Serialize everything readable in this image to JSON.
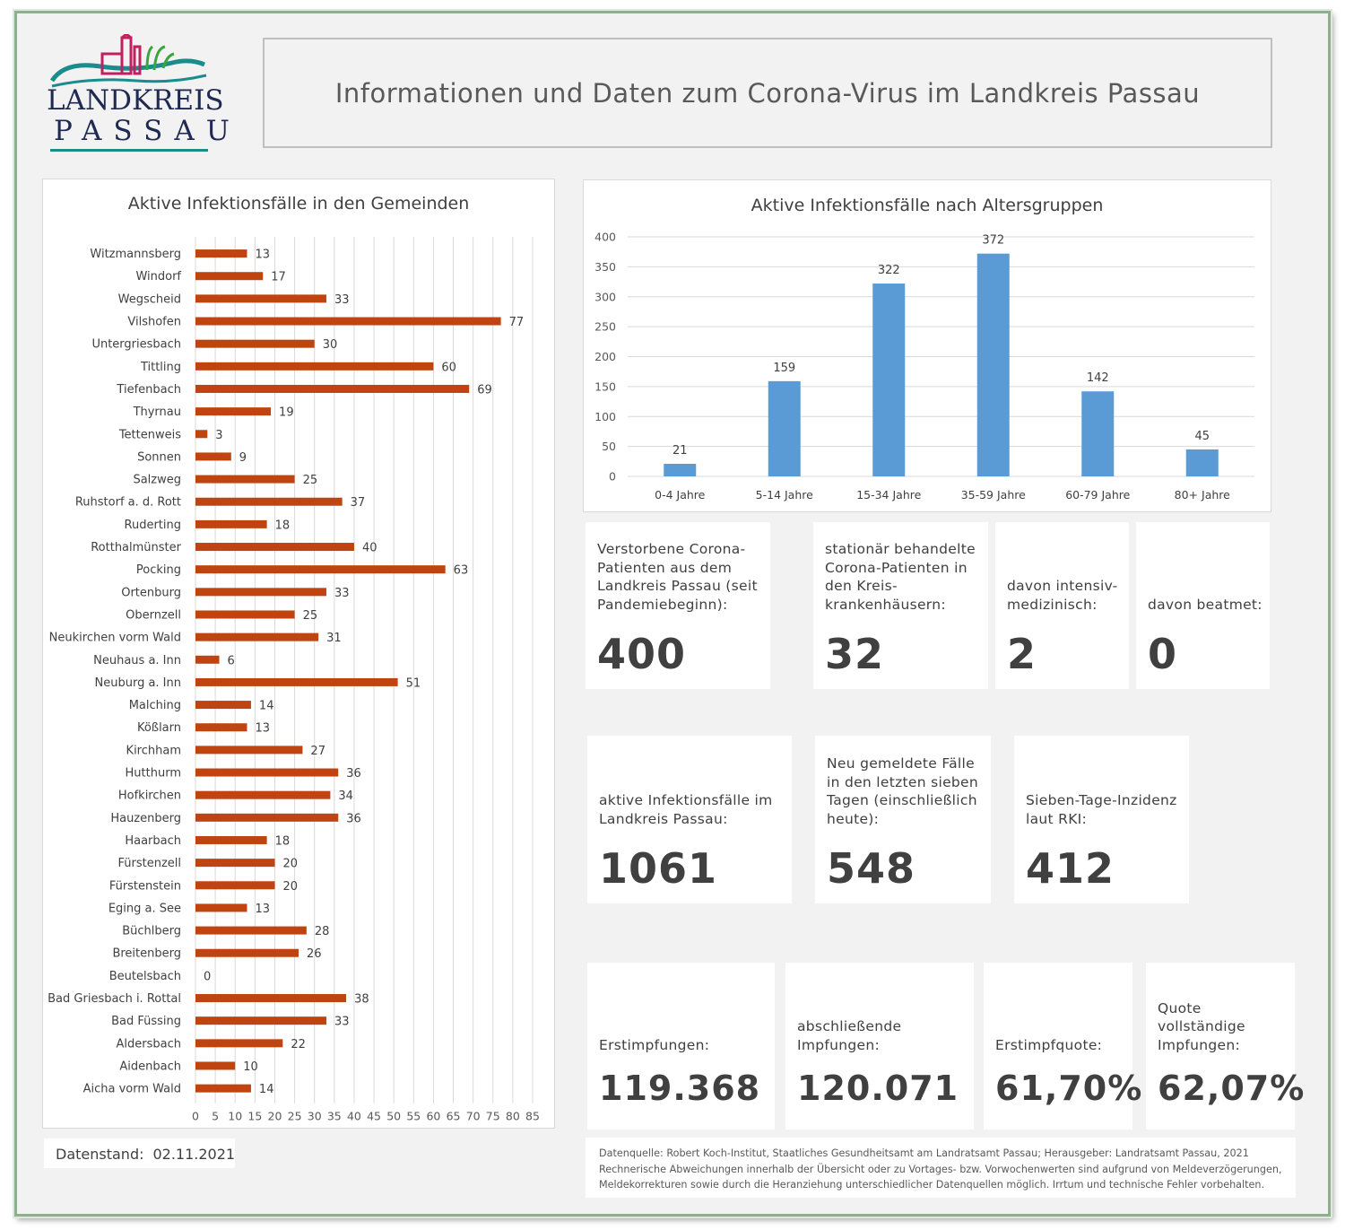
{
  "logo": {
    "line1": "LANDKREIS",
    "line2": "PASSAU"
  },
  "header": {
    "title": "Informationen und Daten zum Corona-Virus im Landkreis Passau"
  },
  "colors": {
    "bar_municipal": "#c0440f",
    "bar_age": "#5b9bd5",
    "frame": "#8fb08f"
  },
  "chart_data": [
    {
      "type": "bar",
      "orientation": "horizontal",
      "title": "Aktive Infektionsfälle in den Gemeinden",
      "categories": [
        "Witzmannsberg",
        "Windorf",
        "Wegscheid",
        "Vilshofen",
        "Untergriesbach",
        "Tittling",
        "Tiefenbach",
        "Thyrnau",
        "Tettenweis",
        "Sonnen",
        "Salzweg",
        "Ruhstorf a. d. Rott",
        "Ruderting",
        "Rotthalmünster",
        "Pocking",
        "Ortenburg",
        "Obernzell",
        "Neukirchen vorm Wald",
        "Neuhaus a. Inn",
        "Neuburg a. Inn",
        "Malching",
        "Kößlarn",
        "Kirchham",
        "Hutthurm",
        "Hofkirchen",
        "Hauzenberg",
        "Haarbach",
        "Fürstenzell",
        "Fürstenstein",
        "Eging a. See",
        "Büchlberg",
        "Breitenberg",
        "Beutelsbach",
        "Bad Griesbach i. Rottal",
        "Bad Füssing",
        "Aldersbach",
        "Aidenbach",
        "Aicha vorm Wald"
      ],
      "values": [
        13,
        17,
        33,
        77,
        30,
        60,
        69,
        19,
        3,
        9,
        25,
        37,
        18,
        40,
        63,
        33,
        25,
        31,
        6,
        51,
        14,
        13,
        27,
        36,
        34,
        36,
        18,
        20,
        20,
        13,
        28,
        26,
        0,
        38,
        33,
        22,
        10,
        14
      ],
      "xlim": [
        0,
        85
      ],
      "xticks": [
        "0",
        "5",
        "10",
        "15",
        "20",
        "25",
        "30",
        "35",
        "40",
        "45",
        "50",
        "55",
        "60",
        "65",
        "70",
        "75",
        "80",
        "85"
      ],
      "grid": true,
      "data_labels": true
    },
    {
      "type": "bar",
      "title": "Aktive Infektionsfälle nach Altersgruppen",
      "categories": [
        "0-4 Jahre",
        "5-14 Jahre",
        "15-34 Jahre",
        "35-59 Jahre",
        "60-79 Jahre",
        "80+ Jahre"
      ],
      "values": [
        21,
        159,
        322,
        372,
        142,
        45
      ],
      "ylim": [
        0,
        400
      ],
      "yticks": [
        "0",
        "50",
        "100",
        "150",
        "200",
        "250",
        "300",
        "350",
        "400"
      ],
      "grid": true,
      "data_labels": true
    }
  ],
  "tiles": {
    "deaths": {
      "label": "Verstorbene Corona-Patienten aus dem Landkreis Passau (seit Pandemiebeginn):",
      "value": "400"
    },
    "hospital": {
      "label": "stationär behandelte Corona-Patienten in den Kreis-krankenhäusern:",
      "value": "32"
    },
    "icu": {
      "label": "davon intensiv-medizinisch:",
      "value": "2"
    },
    "ventilated": {
      "label": "davon beatmet:",
      "value": "0"
    },
    "active": {
      "label": "aktive Infektionsfälle im Landkreis Passau:",
      "value": "1061"
    },
    "new7": {
      "label": "Neu gemeldete Fälle in den letzten sieben Tagen (einschließlich heute):",
      "value": "548"
    },
    "incidence": {
      "label": "Sieben-Tage-Inzidenz laut RKI:",
      "value": "412"
    },
    "first_vacc": {
      "label": "Erstimpfungen:",
      "value": "119.368"
    },
    "full_vacc": {
      "label": "abschließende Impfungen:",
      "value": "120.071"
    },
    "first_rate": {
      "label": "Erstimpfquote:",
      "value": "61,70%"
    },
    "full_rate": {
      "label": "Quote vollständige Impfungen:",
      "value": "62,07%"
    }
  },
  "datenstand": {
    "label": "Datenstand:",
    "date": "02.11.2021"
  },
  "footnote": {
    "line1": "Datenquelle: Robert Koch-Institut, Staatliches Gesundheitsamt am Landratsamt Passau; Herausgeber: Landratsamt Passau, 2021",
    "line2": "Rechnerische Abweichungen innerhalb der Übersicht oder zu Vortages- bzw. Vorwochenwerten sind aufgrund von Meldeverzögerungen,",
    "line3": "Meldekorrekturen sowie durch die Heranziehung unterschiedlicher Datenquellen möglich. Irrtum und technische Fehler vorbehalten."
  }
}
